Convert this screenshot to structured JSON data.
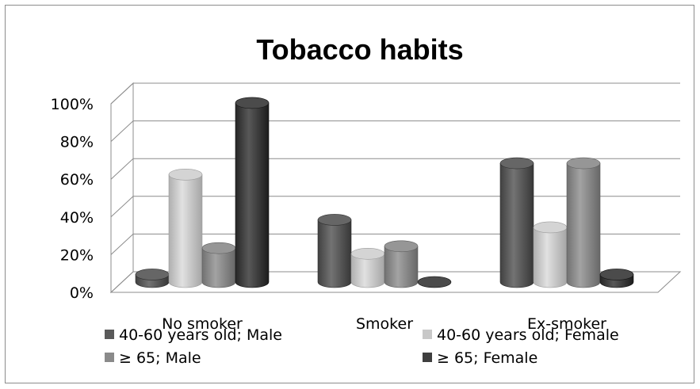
{
  "chart_data": {
    "type": "bar",
    "title": "Tobacco habits",
    "categories": [
      "No smoker",
      "Smoker",
      "Ex-smoker"
    ],
    "y_ticks": [
      "0%",
      "20%",
      "40%",
      "60%",
      "80%",
      "100%"
    ],
    "ylim": [
      0,
      100
    ],
    "grid": true,
    "legend_position": "bottom",
    "series": [
      {
        "name": "40-60 years old; Male",
        "values": [
          4,
          33,
          63
        ],
        "color": "#5a5a5a"
      },
      {
        "name": "40-60 years old; Female",
        "values": [
          57,
          15,
          29
        ],
        "color": "#c8c8c8"
      },
      {
        "name": "≥ 65; Male",
        "values": [
          18,
          19,
          63
        ],
        "color": "#8a8a8a"
      },
      {
        "name": "≥ 65; Female",
        "values": [
          95,
          0,
          4
        ],
        "color": "#3f3f3f"
      }
    ]
  }
}
